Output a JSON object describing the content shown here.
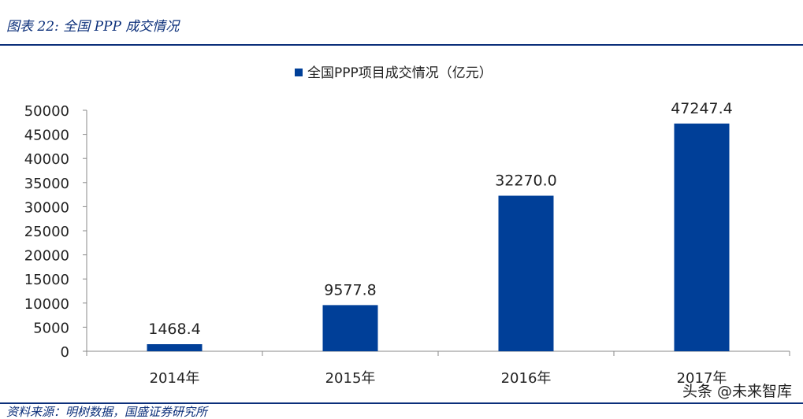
{
  "figure": {
    "title": "图表 22:  全国 PPP 成交情况",
    "source": "资料来源：明树数据，国盛证券研究所",
    "watermark": "头条 @未来智库"
  },
  "colors": {
    "bar": "#003f98",
    "accent": "#0b2f7a",
    "axis": "#888888",
    "text": "#222222"
  },
  "chart_data": {
    "type": "bar",
    "categories": [
      "2014年",
      "2015年",
      "2016年",
      "2017年"
    ],
    "series": [
      {
        "name": "全国PPP项目成交情况（亿元）",
        "values": [
          1468.4,
          9577.8,
          32270.0,
          47247.4
        ],
        "labels": [
          "1468.4",
          "9577.8",
          "32270.0",
          "47247.4"
        ]
      }
    ],
    "yticks": [
      0,
      5000,
      10000,
      15000,
      20000,
      25000,
      30000,
      35000,
      40000,
      45000,
      50000
    ],
    "ylim": [
      0,
      50000
    ],
    "grid": false,
    "legend": "top-center"
  }
}
